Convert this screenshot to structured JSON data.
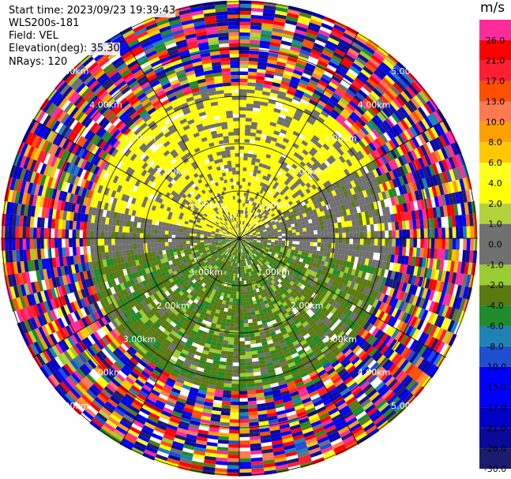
{
  "info": {
    "start_time": "Start time: 2023/09/23 19:39:43",
    "station": "WLS200s-181",
    "field": "Field: VEL",
    "elevation": "Elevation(deg): 35.30",
    "nrays": "NRays: 120"
  },
  "chart_data": {
    "type": "heatmap",
    "subtype": "polar PPI",
    "field": "VEL",
    "units": "m/s",
    "rays": 120,
    "range_rings_km": [
      1,
      2,
      3,
      4,
      5
    ],
    "range_labels": [
      "1.00km",
      "2.00km",
      "3.00km",
      "4.00km",
      "5.00km"
    ],
    "colorbar": {
      "title": "m/s",
      "boundaries": [
        -30,
        -26,
        -21,
        -17,
        -13,
        -10,
        -8,
        -6,
        -4,
        -2,
        -1,
        0,
        1,
        2,
        4,
        6,
        8,
        10,
        13,
        17,
        21,
        26,
        30
      ],
      "tick_labels": [
        "-30.0",
        "-26.0",
        "-21.0",
        "-17.0",
        "-13.0",
        "-10.0",
        "-8.0",
        "-6.0",
        "-4.0",
        "-2.0",
        "-1.0",
        "0.0",
        "1.0",
        "2.0",
        "4.0",
        "6.0",
        "8.0",
        "10.0",
        "13.0",
        "17.0",
        "21.0",
        "26.0"
      ],
      "colors": [
        "#1c1c6e",
        "#0a0a9a",
        "#0000c8",
        "#0000ff",
        "#0000ff",
        "#1e4fd0",
        "#1e82b4",
        "#1e8c2a",
        "#5a7a12",
        "#9acd32",
        "#707070",
        "#707070",
        "#b4d23c",
        "#ffff00",
        "#ffff1e",
        "#ffc800",
        "#ffa000",
        "#ff7a50",
        "#ff5000",
        "#ff1e32",
        "#ff0000",
        "#ff2a9c",
        "#ff5aa8"
      ],
      "colors_note_order": "from -30 to +30"
    },
    "sectors": [
      {
        "azimuth_from": 280,
        "azimuth_to": 60,
        "range_km": [
          0,
          3.2
        ],
        "dominant_velocity": "2.0 to 4.0"
      },
      {
        "azimuth_from": 100,
        "azimuth_to": 260,
        "range_km": [
          0,
          3.2
        ],
        "dominant_velocity": "-2.0 to -6.0"
      },
      {
        "azimuth_from": 60,
        "azimuth_to": 100,
        "range_km": [
          0,
          3.2
        ],
        "dominant_velocity": "0.0"
      },
      {
        "azimuth_from": 260,
        "azimuth_to": 280,
        "range_km": [
          0,
          3.2
        ],
        "dominant_velocity": "0.0"
      },
      {
        "azimuth_from": 0,
        "azimuth_to": 360,
        "range_km": [
          3.2,
          6.0
        ],
        "dominant_velocity": "noise (all bins)"
      }
    ],
    "grid": true,
    "xlabel": "",
    "ylabel": ""
  },
  "icons": {}
}
